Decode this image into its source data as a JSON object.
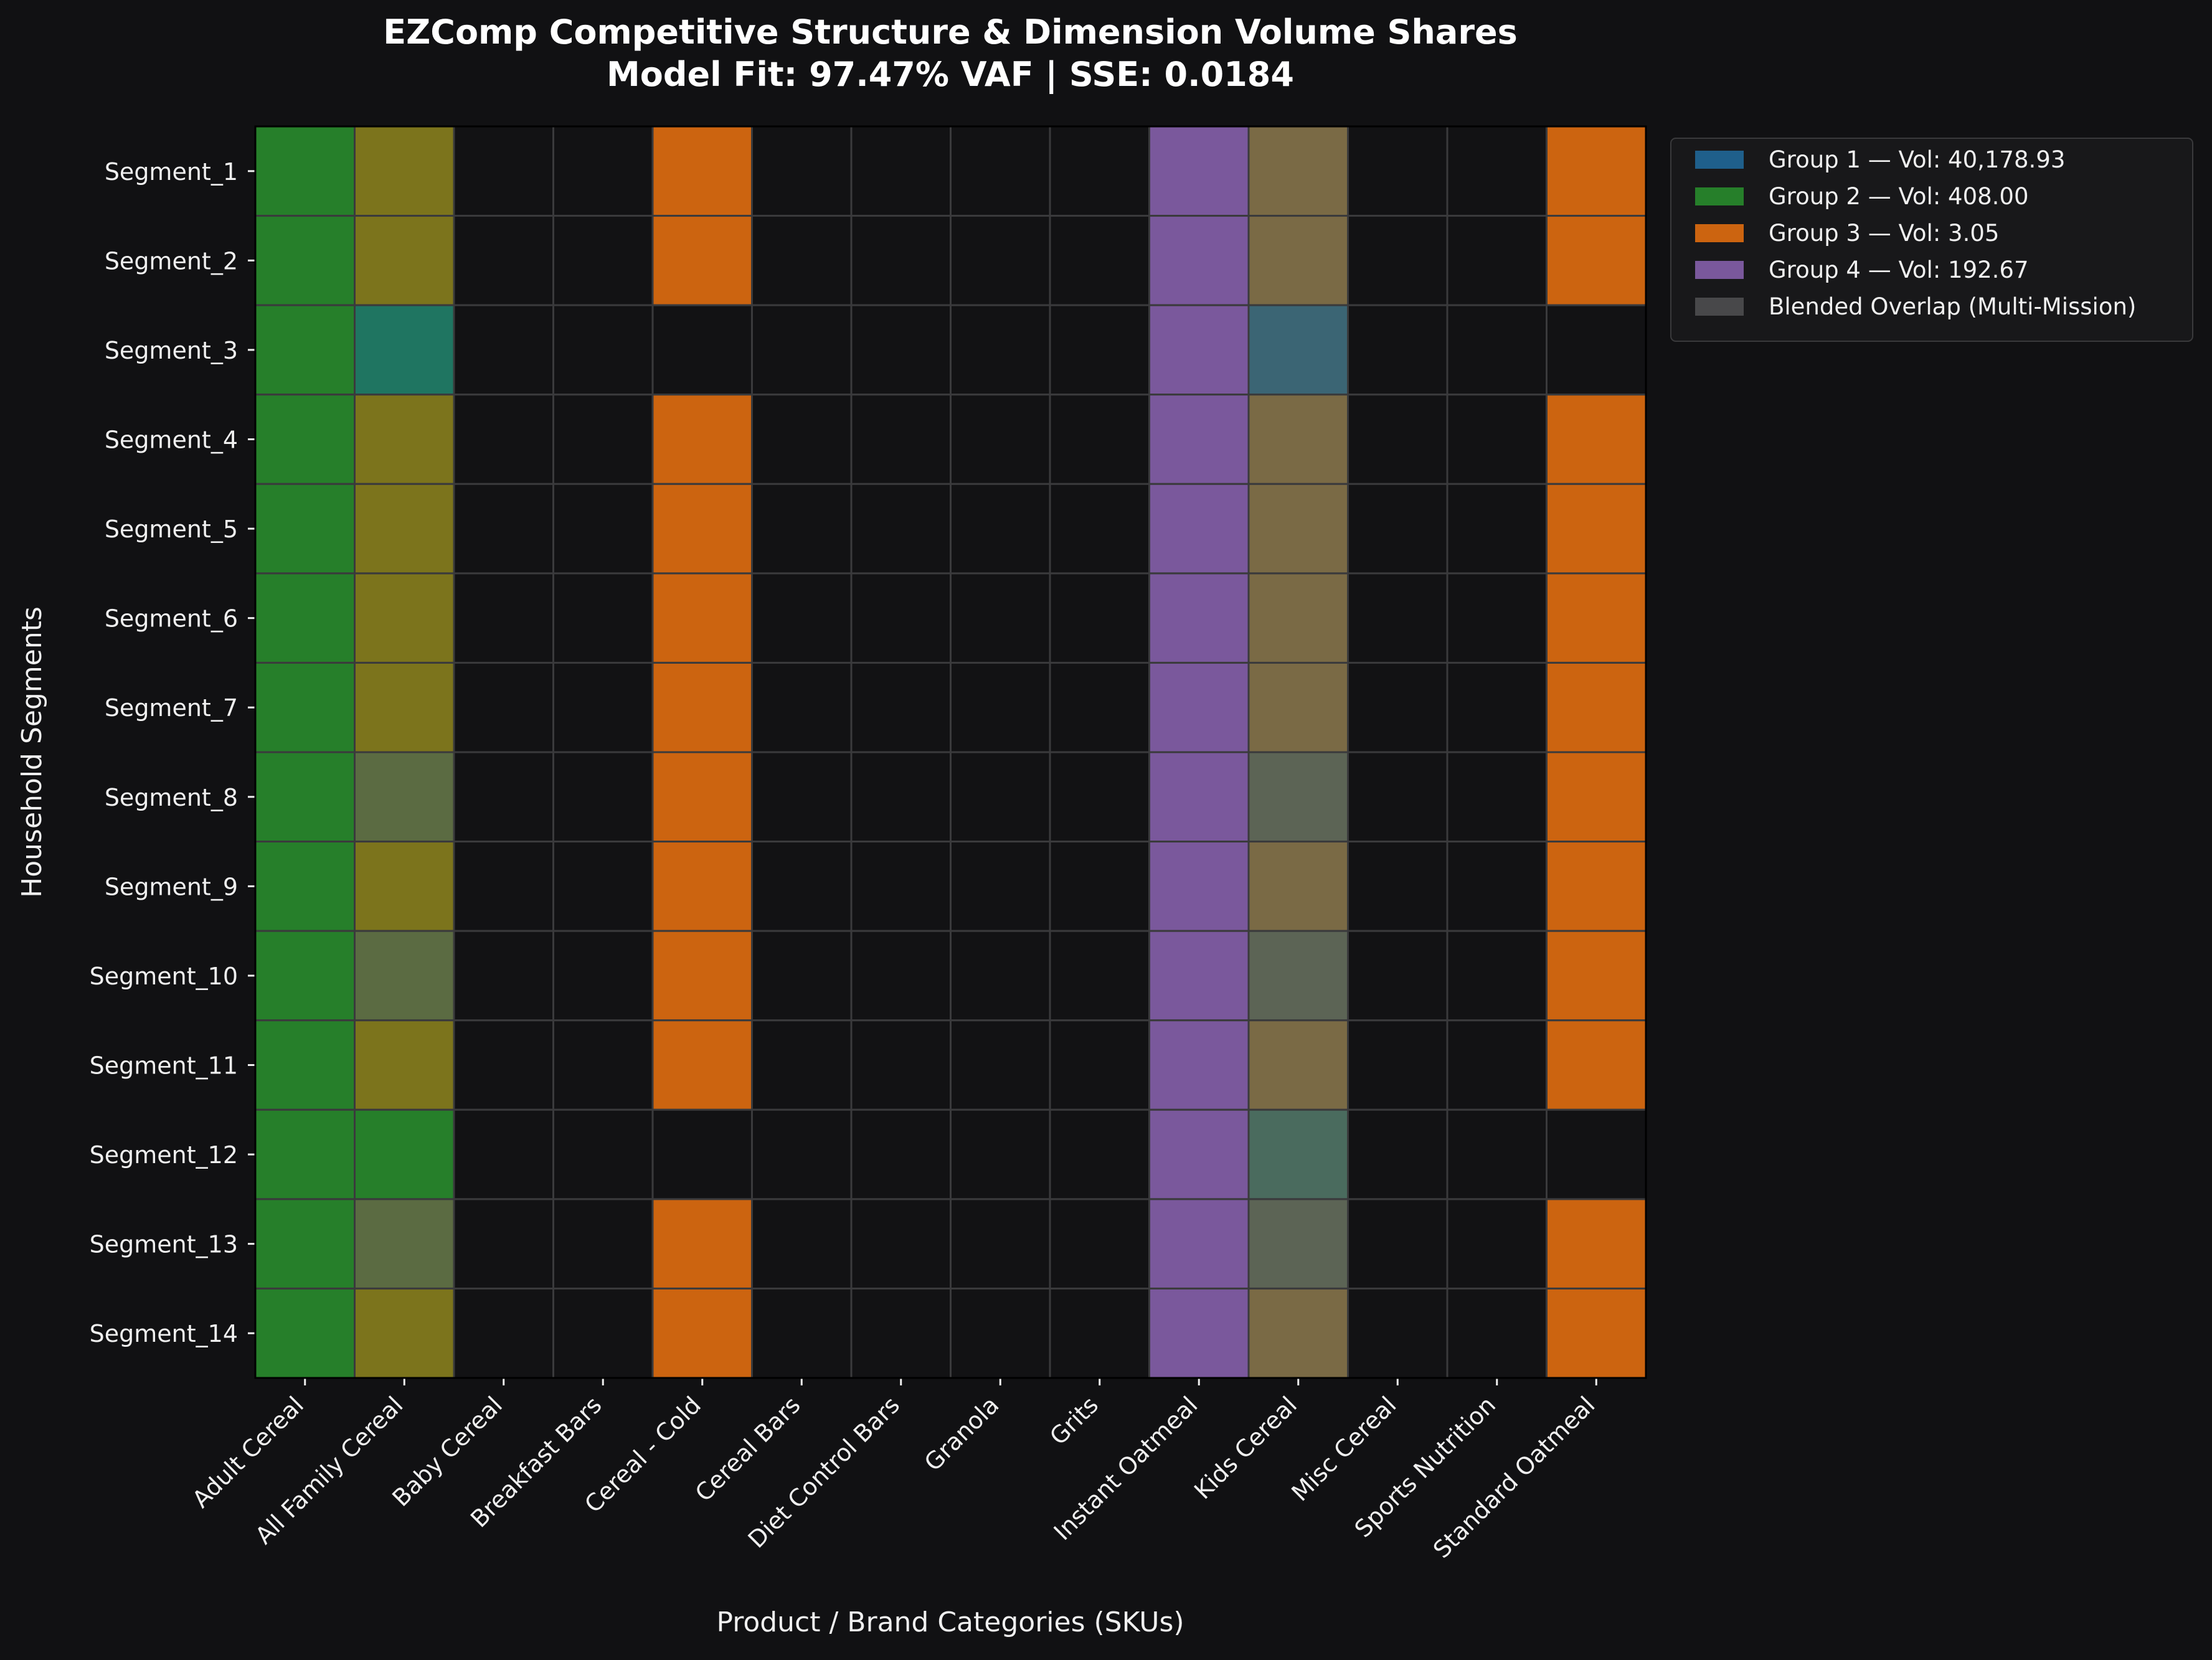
{
  "chart_data": {
    "type": "heatmap",
    "title": "EZComp Competitive Structure & Dimension Volume Shares",
    "subtitle": "Model Fit: 97.47% VAF | SSE: 0.0184",
    "xlabel": "Product / Brand Categories (SKUs)",
    "ylabel": "Household Segments",
    "columns": [
      "Adult Cereal",
      "All Family Cereal",
      "Baby Cereal",
      "Breakfast Bars",
      "Cereal - Cold",
      "Cereal Bars",
      "Diet Control Bars",
      "Granola",
      "Grits",
      "Instant Oatmeal",
      "Kids Cereal",
      "Misc Cereal",
      "Sports Nutrition",
      "Standard Oatmeal"
    ],
    "rows": [
      "Segment_1",
      "Segment_2",
      "Segment_3",
      "Segment_4",
      "Segment_5",
      "Segment_6",
      "Segment_7",
      "Segment_8",
      "Segment_9",
      "Segment_10",
      "Segment_11",
      "Segment_12",
      "Segment_13",
      "Segment_14"
    ],
    "cell_colors": [
      [
        "#267f2a",
        "#7c741c",
        "#121214",
        "#121214",
        "#cc6410",
        "#121214",
        "#121214",
        "#121214",
        "#121214",
        "#7a589c",
        "#7a6a45",
        "#121214",
        "#121214",
        "#cc6410"
      ],
      [
        "#267f2a",
        "#7c741c",
        "#121214",
        "#121214",
        "#cc6410",
        "#121214",
        "#121214",
        "#121214",
        "#121214",
        "#7a589c",
        "#7a6a45",
        "#121214",
        "#121214",
        "#cc6410"
      ],
      [
        "#267f2a",
        "#1f7561",
        "#121214",
        "#121214",
        "#121214",
        "#121214",
        "#121214",
        "#121214",
        "#121214",
        "#7a589c",
        "#3b6574",
        "#121214",
        "#121214",
        "#121214"
      ],
      [
        "#267f2a",
        "#7c741c",
        "#121214",
        "#121214",
        "#cc6410",
        "#121214",
        "#121214",
        "#121214",
        "#121214",
        "#7a589c",
        "#7a6a45",
        "#121214",
        "#121214",
        "#cc6410"
      ],
      [
        "#267f2a",
        "#7c741c",
        "#121214",
        "#121214",
        "#cc6410",
        "#121214",
        "#121214",
        "#121214",
        "#121214",
        "#7a589c",
        "#7a6a45",
        "#121214",
        "#121214",
        "#cc6410"
      ],
      [
        "#267f2a",
        "#7c741c",
        "#121214",
        "#121214",
        "#cc6410",
        "#121214",
        "#121214",
        "#121214",
        "#121214",
        "#7a589c",
        "#7a6a45",
        "#121214",
        "#121214",
        "#cc6410"
      ],
      [
        "#267f2a",
        "#7c741c",
        "#121214",
        "#121214",
        "#cc6410",
        "#121214",
        "#121214",
        "#121214",
        "#121214",
        "#7a589c",
        "#7a6a45",
        "#121214",
        "#121214",
        "#cc6410"
      ],
      [
        "#267f2a",
        "#5b6b42",
        "#121214",
        "#121214",
        "#cc6410",
        "#121214",
        "#121214",
        "#121214",
        "#121214",
        "#7a589c",
        "#5c6455",
        "#121214",
        "#121214",
        "#cc6410"
      ],
      [
        "#267f2a",
        "#7c741c",
        "#121214",
        "#121214",
        "#cc6410",
        "#121214",
        "#121214",
        "#121214",
        "#121214",
        "#7a589c",
        "#7a6a45",
        "#121214",
        "#121214",
        "#cc6410"
      ],
      [
        "#267f2a",
        "#5b6b42",
        "#121214",
        "#121214",
        "#cc6410",
        "#121214",
        "#121214",
        "#121214",
        "#121214",
        "#7a589c",
        "#5c6455",
        "#121214",
        "#121214",
        "#cc6410"
      ],
      [
        "#267f2a",
        "#7c741c",
        "#121214",
        "#121214",
        "#cc6410",
        "#121214",
        "#121214",
        "#121214",
        "#121214",
        "#7a589c",
        "#7a6a45",
        "#121214",
        "#121214",
        "#cc6410"
      ],
      [
        "#267f2a",
        "#267f2a",
        "#121214",
        "#121214",
        "#121214",
        "#121214",
        "#121214",
        "#121214",
        "#121214",
        "#7a589c",
        "#4a6b5e",
        "#121214",
        "#121214",
        "#121214"
      ],
      [
        "#267f2a",
        "#5b6b42",
        "#121214",
        "#121214",
        "#cc6410",
        "#121214",
        "#121214",
        "#121214",
        "#121214",
        "#7a589c",
        "#5c6455",
        "#121214",
        "#121214",
        "#cc6410"
      ],
      [
        "#267f2a",
        "#7c741c",
        "#121214",
        "#121214",
        "#cc6410",
        "#121214",
        "#121214",
        "#121214",
        "#121214",
        "#7a589c",
        "#7a6a45",
        "#121214",
        "#121214",
        "#cc6410"
      ]
    ],
    "legend": {
      "placement": "top-right outside",
      "entries": [
        {
          "label": "Group 1 — Vol: 40,178.93",
          "color": "#1f5f8b"
        },
        {
          "label": "Group 2 — Vol: 408.00",
          "color": "#267f2a"
        },
        {
          "label": "Group 3 — Vol: 3.05",
          "color": "#cc6410"
        },
        {
          "label": "Group 4 — Vol: 192.67",
          "color": "#7a589c"
        },
        {
          "label": "Blended Overlap (Multi-Mission)",
          "color": "#48484a"
        }
      ]
    },
    "grid": true,
    "colors": {
      "background": "#111113",
      "empty_cell": "#121214",
      "grid_line": "#3a3a3c",
      "text": "#f0f0f0"
    }
  }
}
